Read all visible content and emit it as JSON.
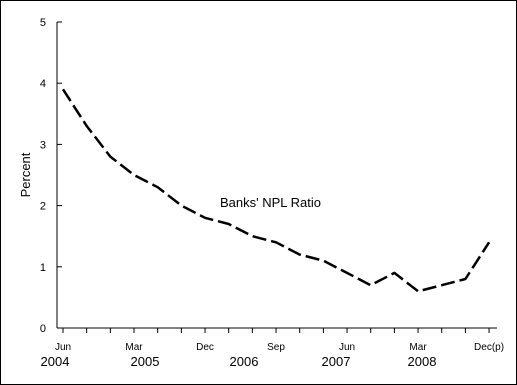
{
  "chart_data": {
    "type": "line",
    "title": "",
    "xlabel": "",
    "ylabel": "Percent",
    "ylim": [
      0,
      5
    ],
    "yticks": [
      "0",
      "1",
      "2",
      "3",
      "4",
      "5"
    ],
    "grid": false,
    "x_month_labels": [
      "Jun",
      "Mar",
      "Dec",
      "Sep",
      "Jun",
      "Mar",
      "Dec(p)"
    ],
    "x_year_labels": [
      "2004",
      "2005",
      "2006",
      "2007",
      "2008"
    ],
    "annotation": "Banks' NPL Ratio",
    "x": [
      "Jun 2004",
      "Sep 2004",
      "Dec 2004",
      "Mar 2005",
      "Jun 2005",
      "Sep 2005",
      "Dec 2005",
      "Mar 2006",
      "Jun 2006",
      "Sep 2006",
      "Dec 2006",
      "Mar 2007",
      "Jun 2007",
      "Sep 2007",
      "Dec 2007",
      "Mar 2008",
      "Jun 2008",
      "Sep 2008",
      "Dec 2008"
    ],
    "series": [
      {
        "values": [
          3.9,
          3.3,
          2.8,
          2.5,
          2.3,
          2.0,
          1.8,
          1.7,
          1.5,
          1.4,
          1.2,
          1.1,
          0.9,
          0.7,
          0.9,
          0.6,
          0.7,
          0.8,
          1.4
        ]
      }
    ]
  }
}
